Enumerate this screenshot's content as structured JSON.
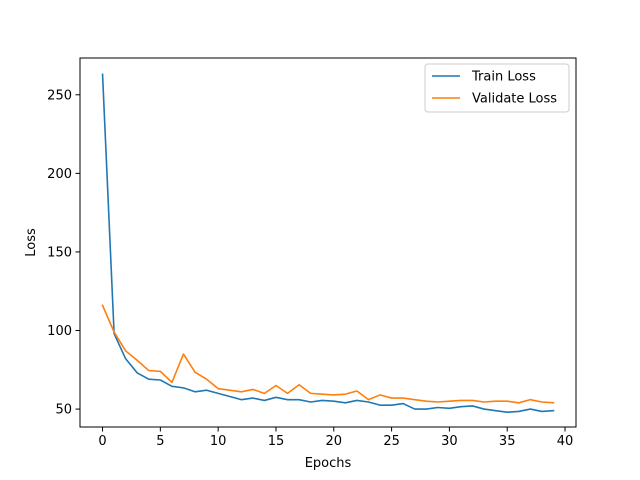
{
  "chart_data": {
    "type": "line",
    "title": "",
    "xlabel": "Epochs",
    "ylabel": "Loss",
    "xlim": [
      -1.95,
      40.95
    ],
    "ylim": [
      38.6,
      273.4
    ],
    "xticks": [
      0,
      5,
      10,
      15,
      20,
      25,
      30,
      35,
      40
    ],
    "yticks": [
      50,
      100,
      150,
      200,
      250
    ],
    "grid": false,
    "legend_position": "top-right",
    "x": [
      0,
      1,
      2,
      3,
      4,
      5,
      6,
      7,
      8,
      9,
      10,
      11,
      12,
      13,
      14,
      15,
      16,
      17,
      18,
      19,
      20,
      21,
      22,
      23,
      24,
      25,
      26,
      27,
      28,
      29,
      30,
      31,
      32,
      33,
      34,
      35,
      36,
      37,
      38,
      39
    ],
    "series": [
      {
        "name": "Train Loss",
        "color": "#1f77b4",
        "values": [
          263,
          98,
          82,
          73,
          69,
          68.5,
          64.5,
          63.5,
          61,
          62,
          60,
          58,
          56,
          57,
          55.5,
          57.5,
          56,
          56,
          54.5,
          55.5,
          55,
          54,
          55.5,
          54.5,
          52.5,
          52.5,
          53.5,
          50,
          50,
          51,
          50.5,
          51.5,
          52,
          50,
          49,
          48,
          48.5,
          50,
          48.5,
          49
        ]
      },
      {
        "name": "Validate Loss",
        "color": "#ff7f0e",
        "values": [
          116,
          99,
          87,
          81,
          74.5,
          74,
          67,
          85,
          73.5,
          69,
          63,
          62,
          61,
          62.5,
          60,
          65,
          60,
          65.5,
          60,
          59.5,
          59,
          59.5,
          61.5,
          56,
          59,
          57,
          57,
          56,
          55,
          54.5,
          55,
          55.5,
          55.5,
          54.5,
          55,
          55,
          54,
          56,
          54.5,
          54
        ]
      }
    ]
  }
}
